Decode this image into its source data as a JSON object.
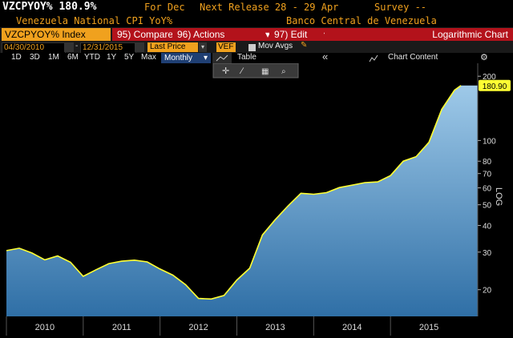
{
  "header": {
    "ticker_value": "VZCPYOY% 180.9%",
    "for_label": "For Dec",
    "next_release": "Next Release 28 - 29 Apr",
    "survey": "Survey --",
    "index_name": "Venezuela National CPI YoY%",
    "source": "Banco Central de Venezuela"
  },
  "toolbar": {
    "security": "VZCPYOY% Index",
    "compare": "95) Compare",
    "actions": "96) Actions",
    "edit": "97) Edit",
    "chart_mode": "Logarithmic Chart"
  },
  "controls": {
    "start_date": "04/30/2010",
    "end_date": "12/31/2015",
    "field": "Last Price",
    "currency": "VEF",
    "mov_avgs": "Mov Avgs",
    "ranges": [
      "1D",
      "3D",
      "1M",
      "6M",
      "YTD",
      "1Y",
      "5Y",
      "Max"
    ],
    "periodicity": "Monthly",
    "table": "Table",
    "chart_content": "Chart Content"
  },
  "colors": {
    "accent": "#f0a11e",
    "toolbar_red": "#b3121b",
    "line": "#ffff33",
    "fill_top": "#a9d2ef",
    "fill_bottom": "#2f6fa6"
  },
  "icons": {
    "pencil": "pencil-icon",
    "collapse": "double-chevron-left-icon",
    "chart_content": "mountain-chart-icon",
    "settings": "gear-icon",
    "crosshair": "crosshair-icon",
    "draw": "draw-icon",
    "table": "table-grid-icon",
    "zoom": "magnifier-icon"
  },
  "chart_data": {
    "type": "area",
    "log_scale": true,
    "axis_label": "LOG",
    "last_value_label": "180.90",
    "x_tick_labels": [
      "2010",
      "2011",
      "2012",
      "2013",
      "2014",
      "2015"
    ],
    "y_tick_labels": [
      "20",
      "30",
      "40",
      "50",
      "60",
      "70",
      "80",
      "100",
      "200"
    ],
    "ylim": [
      15,
      230
    ],
    "xlim": [
      "2010-01",
      "2016-01"
    ],
    "grid": false,
    "series": [
      {
        "x": [
          "2010-01",
          "2010-03",
          "2010-05",
          "2010-07",
          "2010-09",
          "2010-11",
          "2011-01",
          "2011-03",
          "2011-05",
          "2011-07",
          "2011-09",
          "2011-11",
          "2012-01",
          "2012-03",
          "2012-05",
          "2012-07",
          "2012-09",
          "2012-11",
          "2013-01",
          "2013-03",
          "2013-05",
          "2013-07",
          "2013-09",
          "2013-11",
          "2014-01",
          "2014-03",
          "2014-05",
          "2014-07",
          "2014-09",
          "2014-11",
          "2015-01",
          "2015-03",
          "2015-05",
          "2015-07",
          "2015-09",
          "2015-11",
          "2015-12"
        ],
        "values": [
          30.5,
          31.3,
          29.7,
          27.6,
          28.8,
          26.9,
          23.1,
          24.8,
          26.5,
          27.2,
          27.5,
          27.0,
          25.0,
          23.4,
          21.1,
          18.2,
          18.1,
          18.8,
          22.2,
          25.2,
          36.1,
          42.6,
          49.4,
          56.6,
          56.0,
          57.0,
          60.2,
          61.8,
          63.5,
          64.0,
          68.5,
          80.0,
          84.0,
          98.0,
          140.0,
          172.0,
          180.9
        ]
      }
    ]
  }
}
